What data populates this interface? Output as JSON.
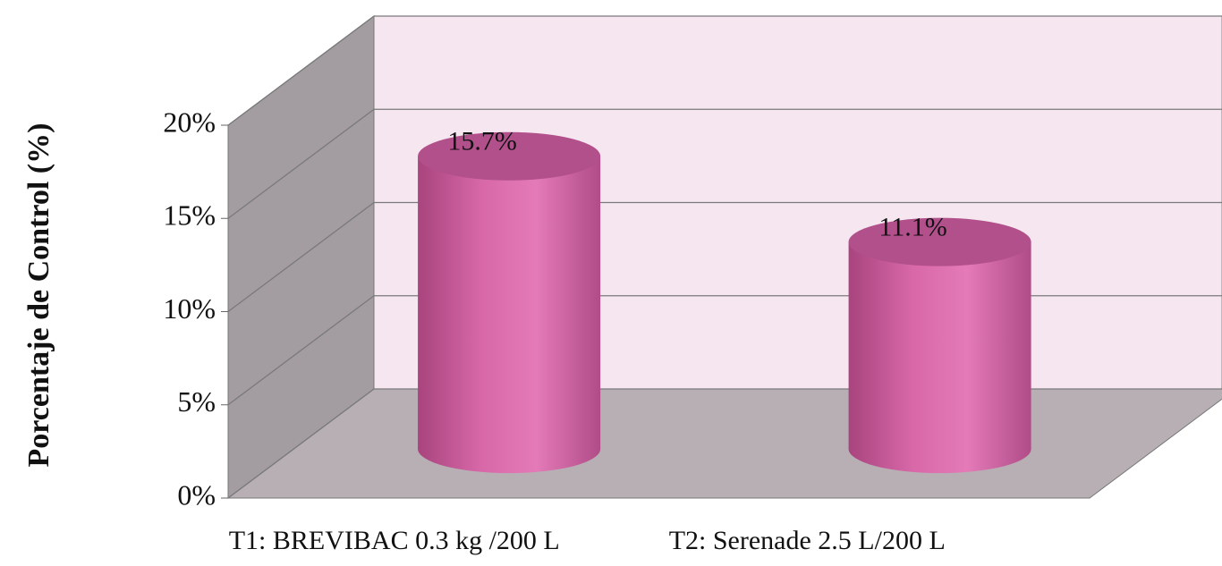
{
  "chart_data": {
    "type": "bar3d",
    "y_label": "Porcentaje de Control (%)",
    "categories": [
      "T1: BREVIBAC 0.3 kg /200 L",
      "T2: Serenade 2.5 L/200 L"
    ],
    "values": [
      15.7,
      11.1
    ],
    "value_labels": [
      "15.7%",
      "11.1%"
    ],
    "color": "#d868a8",
    "ylim": [
      0,
      20
    ],
    "yticks": [
      {
        "value": 0,
        "label": "0%"
      },
      {
        "value": 5,
        "label": "5%"
      },
      {
        "value": 10,
        "label": "10%"
      },
      {
        "value": 15,
        "label": "15%"
      },
      {
        "value": 20,
        "label": "20%"
      }
    ],
    "grid": true
  }
}
